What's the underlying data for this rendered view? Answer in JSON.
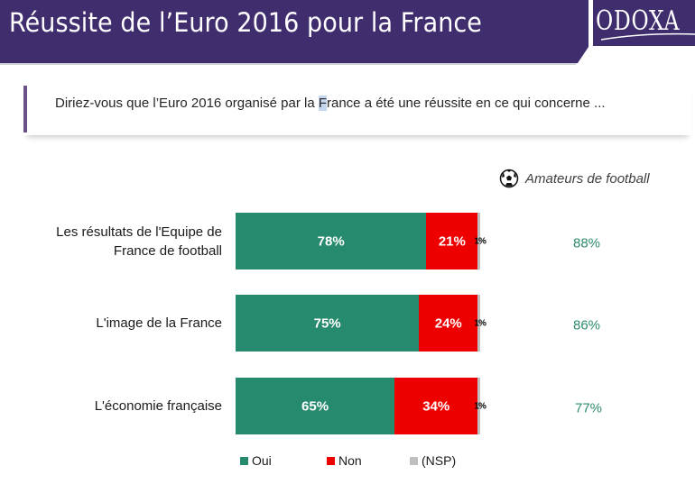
{
  "header": {
    "title": "Réussite de l’Euro 2016 pour la France",
    "logo": "ODOXA",
    "color": "#3f2d6e"
  },
  "question": {
    "before": "Diriez-vous que l’Euro 2016 organisé par la ",
    "highlight": "F",
    "after": "rance a été une réussite en ce qui concerne ..."
  },
  "amateurs": {
    "icon": "soccer-ball-icon",
    "label": "Amateurs de football"
  },
  "chart_data": {
    "type": "bar",
    "orientation": "horizontal-stacked",
    "title": "Réussite de l’Euro 2016 pour la France",
    "categories": [
      "Les résultats de l'Equipe de France de football",
      "L'image de la France",
      "L'économie française"
    ],
    "category_lines": [
      [
        "Les résultats de l'Equipe de",
        "France de football"
      ],
      [
        "L'image de la France"
      ],
      [
        "L'économie française"
      ]
    ],
    "series": [
      {
        "name": "Oui",
        "color": "#268a6e",
        "values": [
          78,
          75,
          65
        ],
        "labels": [
          "78%",
          "75%",
          "65%"
        ]
      },
      {
        "name": "Non",
        "color": "#ee0000",
        "values": [
          21,
          24,
          34
        ],
        "labels": [
          "21%",
          "24%",
          "34%"
        ]
      },
      {
        "name": "(NSP)",
        "color": "#bfbfbf",
        "values": [
          1,
          1,
          1
        ],
        "labels": [
          "1%",
          "1%",
          "1%"
        ]
      }
    ],
    "amateurs_de_football": {
      "label": "Amateurs de football",
      "values": [
        88,
        86,
        77
      ],
      "labels": [
        "88%",
        "86%",
        "77%"
      ],
      "color": "#2e8b6f"
    },
    "xlim": [
      0,
      100
    ],
    "legend": [
      "Oui",
      "Non",
      "(NSP)"
    ],
    "legend_position": "bottom",
    "grid": false
  }
}
